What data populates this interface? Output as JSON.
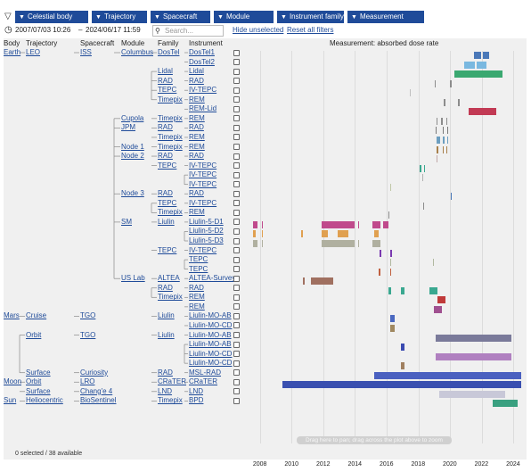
{
  "filters": [
    {
      "label": "Celestial body",
      "w": 82
    },
    {
      "label": "Trajectory",
      "w": 62
    },
    {
      "label": "Spacecraft",
      "w": 67
    },
    {
      "label": "Module",
      "w": 67
    },
    {
      "label": "Instrument family",
      "w": 75
    },
    {
      "label": "Measurement",
      "w": 86
    }
  ],
  "date_from": "2007/07/03 10:26",
  "date_sep": "–",
  "date_to": "2024/06/17 11:59",
  "search_placeholder": "Search...",
  "hide_unselected": "Hide unselected",
  "reset_filters": "Reset all filters",
  "headers": {
    "body": "Body",
    "trajectory": "Trajectory",
    "spacecraft": "Spacecraft",
    "module": "Module",
    "family": "Family",
    "instrument": "Instrument"
  },
  "chart_title": "Measurement: absorbed dose rate",
  "status": "0 selected / 38 available",
  "drag_hint": "Drag here to pan; drag across the plot above to zoom",
  "years": [
    "2008",
    "2010",
    "2012",
    "2014",
    "2016",
    "2018",
    "2020",
    "2022",
    "2024"
  ],
  "rows": [
    {
      "body": "Earth",
      "traj": "LEO",
      "sc": "ISS",
      "mod": "Columbus",
      "fam": "DosTel",
      "inst": "DosTel1"
    },
    {
      "inst": "DosTel2"
    },
    {
      "fam": "Lidal",
      "inst": "Lidal"
    },
    {
      "fam": "RAD",
      "inst": "RAD"
    },
    {
      "fam": "TEPC",
      "inst": "IV-TEPC"
    },
    {
      "fam": "Timepix",
      "inst": "REM"
    },
    {
      "inst": "REM-Lid"
    },
    {
      "mod": "Cupola",
      "fam": "Timepix",
      "inst": "REM"
    },
    {
      "mod": "JPM",
      "fam": "RAD",
      "inst": "RAD"
    },
    {
      "fam": "Timepix",
      "inst": "REM"
    },
    {
      "mod": "Node 1",
      "fam": "Timepix",
      "inst": "REM"
    },
    {
      "mod": "Node 2",
      "fam": "RAD",
      "inst": "RAD"
    },
    {
      "fam": "TEPC",
      "inst": "IV-TEPC"
    },
    {
      "inst": "IV-TEPC"
    },
    {
      "inst": "IV-TEPC"
    },
    {
      "mod": "Node 3",
      "fam": "RAD",
      "inst": "RAD"
    },
    {
      "fam": "TEPC",
      "inst": "IV-TEPC"
    },
    {
      "fam": "Timepix",
      "inst": "REM"
    },
    {
      "mod": "SM",
      "fam": "Liulin",
      "inst": "Liulin-5-D1"
    },
    {
      "inst": "Liulin-5-D2"
    },
    {
      "inst": "Liulin-5-D3"
    },
    {
      "fam": "TEPC",
      "inst": "IV-TEPC"
    },
    {
      "inst": "TEPC"
    },
    {
      "inst": "TEPC"
    },
    {
      "mod": "US Lab",
      "fam": "ALTEA",
      "inst": "ALTEA-Survey"
    },
    {
      "fam": "RAD",
      "inst": "RAD"
    },
    {
      "fam": "Timepix",
      "inst": "REM"
    },
    {
      "inst": "REM"
    },
    {
      "body": "Mars",
      "traj": "Cruise",
      "sc": "TGO",
      "fam": "Liulin",
      "inst": "Liulin-MO-AB"
    },
    {
      "inst": "Liulin-MO-CD"
    },
    {
      "traj": "Orbit",
      "sc": "TGO",
      "fam": "Liulin",
      "inst": "Liulin-MO-AB"
    },
    {
      "inst": "Liulin-MO-AB"
    },
    {
      "inst": "Liulin-MO-CD"
    },
    {
      "inst": "Liulin-MO-CD"
    },
    {
      "traj": "Surface",
      "sc": "Curiosity",
      "fam": "RAD",
      "inst": "MSL-RAD"
    },
    {
      "body": "Moon",
      "traj": "Orbit",
      "sc": "LRO",
      "fam": "CRaTER",
      "inst": "CRaTER"
    },
    {
      "traj": "Surface",
      "sc": "Chang'e 4",
      "fam": "LND",
      "inst": "LND"
    },
    {
      "body": "Sun",
      "traj": "Heliocentric",
      "sc": "BioSentinel",
      "fam": "Timepix",
      "inst": "BPD"
    }
  ],
  "chart_data": {
    "type": "timeline",
    "title": "Measurement: absorbed dose rate",
    "x_range": [
      2007.5,
      2024.5
    ],
    "x_ticks": [
      2008,
      2010,
      2012,
      2014,
      2016,
      2018,
      2020,
      2022,
      2024
    ],
    "row_colors": [
      "#4a78b8",
      "#7ab8e0",
      "#3aa870",
      "#8c8c8c",
      "#c0c0c0",
      "#8c8c8c",
      "#c23a54",
      "#8c8c8c",
      "#7a7a7a",
      "#6c9ec0",
      "#a8804a",
      "#c0a8a8",
      "#3aa890",
      "#b0b0b0",
      "#c0c8a8",
      "#4a78b8",
      "#8c8c8c",
      "#8c8c8c",
      "#c04a8c",
      "#e0a050",
      "#b0b0a0",
      "#7a3ab0",
      "#b0b8a0",
      "#c06040",
      "#a07060",
      "#3aa890",
      "#c03a3a",
      "#a05090",
      "#4a68c0",
      "#a08860",
      "#7a7a9a",
      "#3a4ab0",
      "#b080c0",
      "#a08060",
      "#4a60c0",
      "#3a50b0",
      "#c8c8d8",
      "#3aa080"
    ],
    "intervals": [
      [
        [
          2021.5,
          2021.95
        ],
        [
          2022.1,
          2022.45
        ]
      ],
      [
        [
          2020.9,
          2021.6
        ],
        [
          2021.7,
          2022.3
        ]
      ],
      [
        [
          2020.3,
          2023.3
        ]
      ],
      [
        [
          2019.05,
          2019.12
        ],
        [
          2020.0,
          2020.1
        ]
      ],
      [
        [
          2017.45,
          2017.52
        ]
      ],
      [
        [
          2019.6,
          2019.72
        ],
        [
          2020.5,
          2020.6
        ]
      ],
      [
        [
          2021.2,
          2022.9
        ]
      ],
      [
        [
          2019.15,
          2019.22
        ],
        [
          2019.45,
          2019.52
        ],
        [
          2019.75,
          2019.82
        ]
      ],
      [
        [
          2019.1,
          2019.18
        ],
        [
          2019.55,
          2019.62
        ],
        [
          2019.8,
          2019.9
        ]
      ],
      [
        [
          2019.15,
          2019.35
        ],
        [
          2019.55,
          2019.65
        ],
        [
          2019.8,
          2019.9
        ]
      ],
      [
        [
          2019.15,
          2019.25
        ],
        [
          2019.55,
          2019.62
        ],
        [
          2019.75,
          2019.82
        ]
      ],
      [
        [
          2019.15,
          2019.2
        ]
      ],
      [
        [
          2018.1,
          2018.2
        ],
        [
          2018.35,
          2018.42
        ]
      ],
      [
        [
          2018.25,
          2018.32
        ]
      ],
      [
        [
          2016.2,
          2016.26
        ]
      ],
      [
        [
          2020.05,
          2020.12
        ]
      ],
      [
        [
          2018.3,
          2018.37
        ]
      ],
      [
        [
          2016.1,
          2016.17
        ]
      ],
      [
        [
          2007.55,
          2007.85
        ],
        [
          2008.1,
          2008.2
        ],
        [
          2011.9,
          2014.0
        ],
        [
          2014.2,
          2014.25
        ],
        [
          2015.1,
          2015.6
        ],
        [
          2015.8,
          2016.1
        ]
      ],
      [
        [
          2007.55,
          2007.75
        ],
        [
          2008.1,
          2008.2
        ],
        [
          2010.6,
          2010.7
        ],
        [
          2011.9,
          2012.3
        ],
        [
          2012.9,
          2013.6
        ],
        [
          2015.2,
          2015.5
        ]
      ],
      [
        [
          2007.55,
          2007.85
        ],
        [
          2008.1,
          2008.2
        ],
        [
          2011.9,
          2014.0
        ],
        [
          2014.2,
          2014.25
        ],
        [
          2015.1,
          2015.6
        ]
      ],
      [
        [
          2015.55,
          2015.65
        ],
        [
          2016.25,
          2016.32
        ]
      ],
      [
        [
          2016.2,
          2016.27
        ],
        [
          2018.9,
          2019.0
        ]
      ],
      [
        [
          2015.5,
          2015.58
        ],
        [
          2016.2,
          2016.27
        ]
      ],
      [
        [
          2010.7,
          2010.8
        ],
        [
          2011.2,
          2012.6
        ]
      ],
      [
        [
          2016.1,
          2016.3
        ],
        [
          2016.9,
          2017.1
        ],
        [
          2018.7,
          2019.2
        ]
      ],
      [
        [
          2019.2,
          2019.7
        ]
      ],
      [
        [
          2019.0,
          2019.5
        ]
      ],
      [
        [
          2016.2,
          2016.5
        ]
      ],
      [
        [
          2016.2,
          2016.5
        ]
      ],
      [
        [
          2019.1,
          2023.9
        ]
      ],
      [
        [
          2016.9,
          2017.15
        ]
      ],
      [
        [
          2019.1,
          2023.9
        ]
      ],
      [
        [
          2016.9,
          2017.15
        ]
      ],
      [
        [
          2015.2,
          2024.5
        ]
      ],
      [
        [
          2009.4,
          2024.5
        ]
      ],
      [
        [
          2019.3,
          2023.5
        ]
      ],
      [
        [
          2022.7,
          2024.3
        ]
      ]
    ]
  }
}
